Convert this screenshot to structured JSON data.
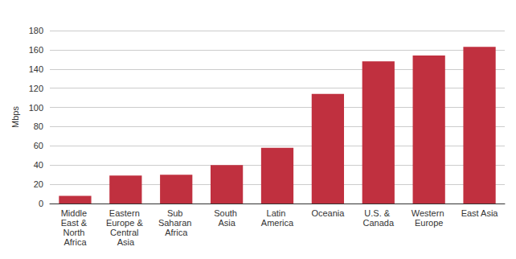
{
  "chart_data": {
    "type": "bar",
    "y_label": "Mbps",
    "categories": [
      "Middle East & North Africa",
      "Eastern Europe & Central Asia",
      "Sub Saharan Africa",
      "South Asia",
      "Latin America",
      "Oceania",
      "U.S. & Canada",
      "Western Europe",
      "East Asia"
    ],
    "values": [
      8,
      29,
      30,
      40,
      58,
      114,
      148,
      154,
      163
    ],
    "color": "#c0303f",
    "ylim": [
      0,
      180
    ],
    "yticks": [
      0,
      20,
      40,
      60,
      80,
      100,
      120,
      140,
      160,
      180
    ],
    "grid": true
  }
}
